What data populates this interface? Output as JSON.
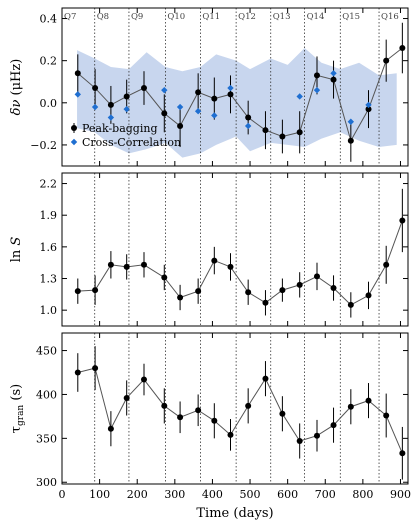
{
  "chart_data": [
    {
      "type": "line",
      "ylabel": "δν (μHz)",
      "xlim": [
        0,
        920
      ],
      "ylim": [
        -0.3,
        0.45
      ],
      "yticks": [
        -0.2,
        0.0,
        0.2,
        0.4
      ],
      "ytick_labels": [
        "−0.2",
        "0.0",
        "0.2",
        "0.4"
      ],
      "quarter_boundaries": [
        87,
        178,
        275,
        368,
        463,
        555,
        645,
        740,
        843
      ],
      "quarter_labels": [
        "Q7",
        "Q8",
        "Q9",
        "Q10",
        "Q11",
        "Q12",
        "Q13",
        "Q14",
        "Q15",
        "Q16"
      ],
      "quarter_label_x": [
        0,
        87,
        178,
        275,
        368,
        463,
        555,
        645,
        740,
        843
      ],
      "band": {
        "x": [
          40,
          87,
          130,
          178,
          225,
          275,
          320,
          368,
          410,
          463,
          500,
          555,
          600,
          645,
          690,
          740,
          790,
          843,
          890
        ],
        "lower": [
          -0.12,
          -0.14,
          -0.2,
          -0.24,
          -0.22,
          -0.19,
          -0.26,
          -0.24,
          -0.2,
          -0.16,
          -0.23,
          -0.19,
          -0.2,
          -0.21,
          -0.17,
          -0.14,
          -0.18,
          -0.21,
          -0.2
        ],
        "upper": [
          0.25,
          0.21,
          0.17,
          0.16,
          0.24,
          0.17,
          0.15,
          0.17,
          0.23,
          0.2,
          0.16,
          0.21,
          0.18,
          0.26,
          0.19,
          0.16,
          0.19,
          0.13,
          0.14
        ]
      },
      "legend_position": "lower-left",
      "series": [
        {
          "name": "Peak-bagging",
          "marker": "circle",
          "color": "#000000",
          "line": true,
          "x": [
            42,
            88,
            130,
            172,
            218,
            272,
            314,
            362,
            405,
            448,
            495,
            541,
            586,
            632,
            678,
            722,
            768,
            815,
            862,
            905
          ],
          "y": [
            0.14,
            0.07,
            -0.01,
            0.03,
            0.07,
            -0.05,
            -0.11,
            0.05,
            0.02,
            0.04,
            -0.07,
            -0.13,
            -0.16,
            -0.14,
            0.13,
            0.11,
            -0.18,
            -0.03,
            0.2,
            0.26
          ],
          "yerr": [
            0.09,
            0.09,
            0.09,
            0.08,
            0.08,
            0.09,
            0.1,
            0.09,
            0.1,
            0.09,
            0.08,
            0.09,
            0.08,
            0.1,
            0.09,
            0.09,
            0.1,
            0.09,
            0.1,
            0.12
          ]
        },
        {
          "name": "Cross-Correlation",
          "marker": "diamond",
          "color": "#1f6fd1",
          "line": false,
          "x": [
            42,
            88,
            130,
            172,
            272,
            314,
            362,
            405,
            448,
            495,
            632,
            678,
            722,
            768,
            815
          ],
          "y": [
            0.04,
            -0.02,
            -0.07,
            -0.03,
            0.06,
            -0.02,
            -0.04,
            -0.06,
            0.07,
            -0.11,
            0.03,
            0.06,
            0.14,
            -0.09,
            -0.01
          ]
        }
      ]
    },
    {
      "type": "line",
      "ylabel": "ln S",
      "xlim": [
        0,
        920
      ],
      "ylim": [
        0.85,
        2.3
      ],
      "yticks": [
        1.0,
        1.3,
        1.6,
        1.9,
        2.2
      ],
      "ytick_labels": [
        "1.0",
        "1.3",
        "1.6",
        "1.9",
        "2.2"
      ],
      "series": [
        {
          "name": "",
          "marker": "circle",
          "color": "#000000",
          "line": true,
          "x": [
            42,
            88,
            130,
            172,
            218,
            272,
            314,
            362,
            405,
            448,
            495,
            541,
            586,
            632,
            678,
            722,
            768,
            815,
            862,
            905
          ],
          "y": [
            1.18,
            1.19,
            1.43,
            1.41,
            1.43,
            1.31,
            1.12,
            1.18,
            1.47,
            1.41,
            1.17,
            1.07,
            1.19,
            1.24,
            1.32,
            1.21,
            1.05,
            1.14,
            1.43,
            1.85
          ],
          "yerr": [
            0.12,
            0.14,
            0.13,
            0.12,
            0.12,
            0.12,
            0.12,
            0.12,
            0.13,
            0.13,
            0.12,
            0.12,
            0.11,
            0.12,
            0.13,
            0.12,
            0.12,
            0.13,
            0.18,
            0.3
          ]
        }
      ]
    },
    {
      "type": "line",
      "ylabel": "τgran (s)",
      "xlim": [
        0,
        920
      ],
      "ylim": [
        298,
        470
      ],
      "yticks": [
        300,
        350,
        400,
        450
      ],
      "ytick_labels": [
        "300",
        "350",
        "400",
        "450"
      ],
      "xticks": [
        0,
        100,
        200,
        300,
        400,
        500,
        600,
        700,
        800,
        900
      ],
      "xtick_labels": [
        "0",
        "100",
        "200",
        "300",
        "400",
        "500",
        "600",
        "700",
        "800",
        "900"
      ],
      "xlabel": "Time (days)",
      "series": [
        {
          "name": "",
          "marker": "circle",
          "color": "#000000",
          "line": true,
          "x": [
            42,
            88,
            130,
            172,
            218,
            272,
            314,
            362,
            405,
            448,
            495,
            541,
            586,
            632,
            678,
            722,
            768,
            815,
            862,
            905
          ],
          "y": [
            425,
            430,
            361,
            396,
            417,
            387,
            374,
            382,
            370,
            354,
            387,
            418,
            378,
            347,
            353,
            365,
            386,
            393,
            376,
            333
          ],
          "yerr": [
            22,
            25,
            20,
            20,
            18,
            20,
            18,
            18,
            20,
            18,
            20,
            20,
            20,
            20,
            18,
            20,
            20,
            20,
            25,
            30
          ]
        }
      ]
    }
  ]
}
